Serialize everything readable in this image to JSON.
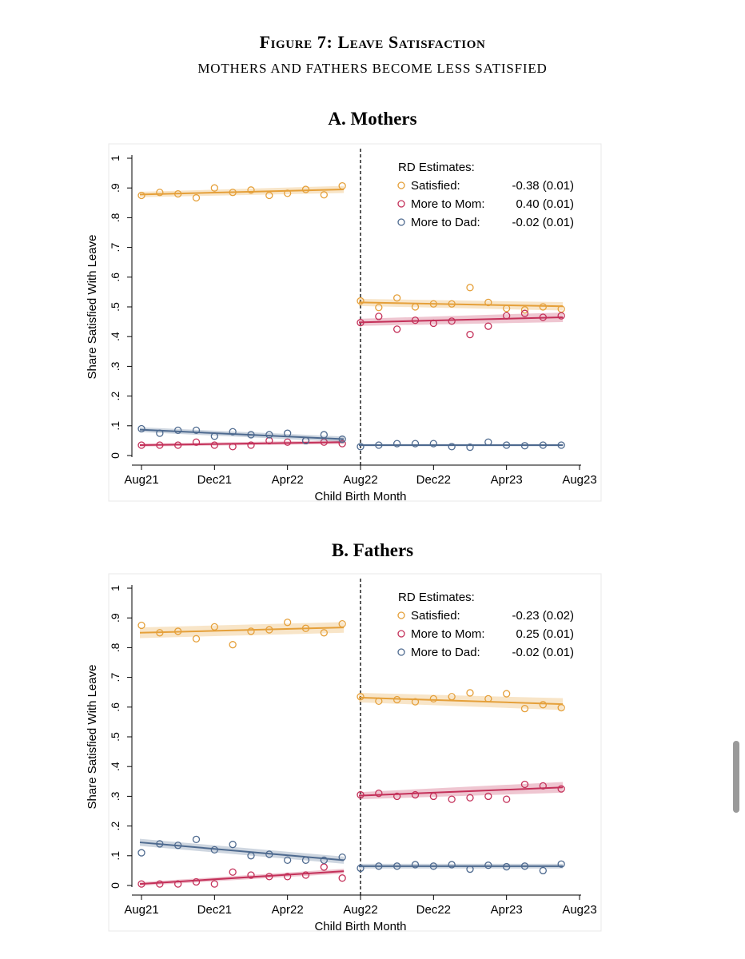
{
  "figure": {
    "title": "Figure 7: Leave Satisfaction",
    "subtitle": "MOTHERS AND FATHERS BECOME LESS SATISFIED"
  },
  "colors": {
    "satisfied": "#e5a03a",
    "mom": "#c4315a",
    "dad": "#4e6a8f"
  },
  "chart_data": [
    {
      "type": "scatter",
      "title": "A. Mothers",
      "xlabel": "Child Birth Month",
      "ylabel": "Share Satisfied With Leave",
      "x_ticks": [
        "Aug21",
        "Dec21",
        "Apr22",
        "Aug22",
        "Dec22",
        "Apr23",
        "Aug23"
      ],
      "y_ticks": [
        "0",
        ".1",
        ".2",
        ".3",
        ".4",
        ".5",
        ".6",
        ".7",
        ".8",
        ".9",
        "1"
      ],
      "ylim": [
        0,
        1
      ],
      "cutoff": "Aug22",
      "legend": {
        "title": "RD Estimates:",
        "placement": "top-right",
        "entries": [
          {
            "label": "Satisfied:",
            "estimate": "-0.38 (0.01)"
          },
          {
            "label": "More to Mom:",
            "estimate": "0.40 (0.01)"
          },
          {
            "label": "More to Dad:",
            "estimate": "-0.02 (0.01)"
          }
        ]
      },
      "series": [
        {
          "name": "Satisfied",
          "color": "#e5a03a",
          "values": [
            0.875,
            0.885,
            0.88,
            0.867,
            0.9,
            0.885,
            0.893,
            0.875,
            0.882,
            0.895,
            0.877,
            0.907,
            0.52,
            0.498,
            0.53,
            0.5,
            0.51,
            0.51,
            0.565,
            0.515,
            0.495,
            0.49,
            0.5,
            0.493
          ],
          "fit_pre": [
            0.878,
            0.895
          ],
          "fit_post": [
            0.515,
            0.502
          ],
          "band_pre": [
            0.009,
            0.012
          ],
          "band_post": [
            0.012,
            0.014
          ]
        },
        {
          "name": "More to Mom",
          "color": "#c4315a",
          "values": [
            0.035,
            0.035,
            0.035,
            0.045,
            0.035,
            0.03,
            0.035,
            0.05,
            0.045,
            0.05,
            0.045,
            0.04,
            0.447,
            0.468,
            0.425,
            0.455,
            0.445,
            0.452,
            0.407,
            0.435,
            0.47,
            0.478,
            0.465,
            0.47
          ],
          "fit_pre": [
            0.035,
            0.045
          ],
          "fit_post": [
            0.448,
            0.465
          ],
          "band_pre": [
            0.005,
            0.006
          ],
          "band_post": [
            0.012,
            0.016
          ]
        },
        {
          "name": "More to Dad",
          "color": "#4e6a8f",
          "values": [
            0.09,
            0.075,
            0.085,
            0.085,
            0.065,
            0.08,
            0.07,
            0.07,
            0.075,
            0.05,
            0.07,
            0.055,
            0.03,
            0.035,
            0.04,
            0.04,
            0.04,
            0.03,
            0.028,
            0.045,
            0.035,
            0.033,
            0.035,
            0.035
          ],
          "fit_pre": [
            0.087,
            0.055
          ],
          "fit_post": [
            0.035,
            0.035
          ],
          "band_pre": [
            0.008,
            0.009
          ],
          "band_post": [
            0.004,
            0.004
          ]
        }
      ]
    },
    {
      "type": "scatter",
      "title": "B. Fathers",
      "xlabel": "Child Birth Month",
      "ylabel": "Share Satisfied With Leave",
      "x_ticks": [
        "Aug21",
        "Dec21",
        "Apr22",
        "Aug22",
        "Dec22",
        "Apr23",
        "Aug23"
      ],
      "y_ticks": [
        "0",
        ".1",
        ".2",
        ".3",
        ".4",
        ".5",
        ".6",
        ".7",
        ".8",
        ".9",
        "1"
      ],
      "ylim": [
        0,
        1
      ],
      "cutoff": "Aug22",
      "legend": {
        "title": "RD Estimates:",
        "placement": "top-right",
        "entries": [
          {
            "label": "Satisfied:",
            "estimate": "-0.23 (0.02)"
          },
          {
            "label": "More to Mom:",
            "estimate": "0.25 (0.01)"
          },
          {
            "label": "More to Dad:",
            "estimate": "-0.02 (0.01)"
          }
        ]
      },
      "series": [
        {
          "name": "Satisfied",
          "color": "#e5a03a",
          "values": [
            0.875,
            0.85,
            0.855,
            0.83,
            0.87,
            0.81,
            0.855,
            0.86,
            0.885,
            0.865,
            0.85,
            0.88,
            0.635,
            0.62,
            0.625,
            0.618,
            0.628,
            0.635,
            0.648,
            0.628,
            0.645,
            0.595,
            0.608,
            0.598
          ],
          "fit_pre": [
            0.85,
            0.868
          ],
          "fit_post": [
            0.632,
            0.61
          ],
          "band_pre": [
            0.018,
            0.018
          ],
          "band_post": [
            0.016,
            0.02
          ]
        },
        {
          "name": "More to Mom",
          "color": "#c4315a",
          "values": [
            0.005,
            0.005,
            0.005,
            0.012,
            0.005,
            0.045,
            0.035,
            0.03,
            0.03,
            0.035,
            0.062,
            0.025,
            0.305,
            0.31,
            0.3,
            0.305,
            0.3,
            0.29,
            0.295,
            0.3,
            0.29,
            0.34,
            0.335,
            0.325
          ],
          "fit_pre": [
            0.005,
            0.048
          ],
          "fit_post": [
            0.302,
            0.33
          ],
          "band_pre": [
            0.006,
            0.008
          ],
          "band_post": [
            0.012,
            0.018
          ]
        },
        {
          "name": "More to Dad",
          "color": "#4e6a8f",
          "values": [
            0.11,
            0.14,
            0.135,
            0.155,
            0.12,
            0.138,
            0.1,
            0.105,
            0.085,
            0.085,
            0.085,
            0.095,
            0.058,
            0.065,
            0.065,
            0.07,
            0.065,
            0.07,
            0.055,
            0.068,
            0.063,
            0.065,
            0.05,
            0.072
          ],
          "fit_pre": [
            0.145,
            0.085
          ],
          "fit_post": [
            0.065,
            0.065
          ],
          "band_pre": [
            0.012,
            0.012
          ],
          "band_post": [
            0.008,
            0.008
          ]
        }
      ]
    }
  ]
}
